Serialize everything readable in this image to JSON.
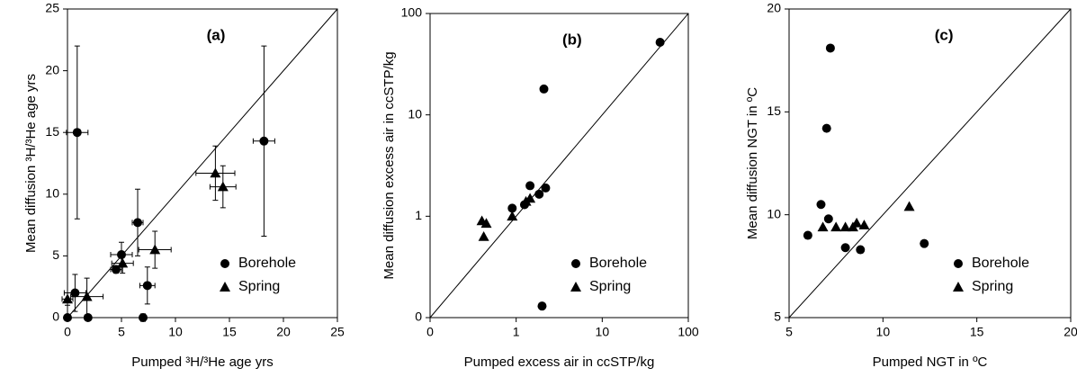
{
  "chart_data": [
    {
      "type": "scatter",
      "annotation": "(a)",
      "xlabel": "Pumped ³H/³He age yrs",
      "ylabel": "Mean diffusion ³H/³He age yrs",
      "xlim": [
        0,
        25
      ],
      "ylim": [
        0,
        25
      ],
      "xticks": [
        0,
        5,
        10,
        15,
        20,
        25
      ],
      "yticks": [
        0,
        5,
        10,
        15,
        20,
        25
      ],
      "legend": "lower right",
      "series": [
        {
          "name": "Borehole",
          "color": "#000000",
          "marker": "circle",
          "x": [
            0,
            0.9,
            0.7,
            1.9,
            4.5,
            5.0,
            6.5,
            7.4,
            7.0,
            18.2
          ],
          "values": [
            0,
            15,
            2.0,
            0,
            3.9,
            5.1,
            7.7,
            2.6,
            0,
            14.3
          ],
          "xerr": [
            0,
            1,
            1,
            0,
            0.5,
            1,
            0.5,
            0.7,
            0.3,
            1
          ],
          "yerr": [
            0,
            7,
            1.5,
            0,
            0.3,
            1,
            2.7,
            1.5,
            0.3,
            7.7
          ]
        },
        {
          "name": "Spring",
          "color": "#000000",
          "marker": "triangle",
          "x": [
            0,
            1.8,
            5.1,
            8.1,
            13.7,
            14.4
          ],
          "values": [
            1.5,
            1.7,
            4.4,
            5.5,
            11.7,
            10.6
          ],
          "xerr": [
            0.5,
            1.5,
            1,
            1.5,
            1.8,
            1.2
          ],
          "yerr": [
            0.5,
            1.5,
            0.8,
            1.5,
            2.2,
            1.7
          ]
        }
      ]
    },
    {
      "type": "scatter",
      "annotation": "(b)",
      "xlabel": "Pumped excess air in ccSTP/kg",
      "ylabel": "Mean diffusion excess air in ccSTP/kg",
      "log_x": true,
      "log_y": true,
      "xlim": [
        0.1,
        100
      ],
      "ylim": [
        0.1,
        100
      ],
      "xticks": [
        {
          "value": 0.1,
          "label": "0"
        },
        1,
        10,
        100
      ],
      "yticks": [
        {
          "value": 0.1,
          "label": "0"
        },
        1,
        10,
        100
      ],
      "legend": "lower right",
      "series": [
        {
          "name": "Borehole",
          "color": "#000000",
          "marker": "circle",
          "x": [
            0.9,
            1.25,
            1.45,
            1.85,
            2.2,
            2.1,
            2.0,
            47
          ],
          "values": [
            1.2,
            1.3,
            2.0,
            1.65,
            1.9,
            18,
            0.13,
            52
          ]
        },
        {
          "name": "Spring",
          "color": "#000000",
          "marker": "triangle",
          "x": [
            0.4,
            0.45,
            0.42,
            0.9,
            1.3,
            1.45
          ],
          "values": [
            0.9,
            0.85,
            0.63,
            1.0,
            1.4,
            1.5
          ]
        }
      ]
    },
    {
      "type": "scatter",
      "annotation": "(c)",
      "xlabel": "Pumped NGT in ºC",
      "ylabel": "Mean diffusion NGT in ºC",
      "xlim": [
        5,
        20
      ],
      "ylim": [
        5,
        20
      ],
      "xticks": [
        5,
        10,
        15,
        20
      ],
      "yticks": [
        5,
        10,
        15,
        20
      ],
      "legend": "lower right",
      "series": [
        {
          "name": "Borehole",
          "color": "#000000",
          "marker": "circle",
          "x": [
            6.0,
            6.7,
            7.1,
            7.0,
            7.2,
            8.0,
            8.8,
            12.2
          ],
          "values": [
            9.0,
            10.5,
            9.8,
            14.2,
            18.1,
            8.4,
            8.3,
            8.6
          ]
        },
        {
          "name": "Spring",
          "color": "#000000",
          "marker": "triangle",
          "x": [
            6.8,
            7.5,
            8.0,
            8.4,
            8.6,
            9.0,
            11.4
          ],
          "values": [
            9.4,
            9.4,
            9.4,
            9.4,
            9.6,
            9.5,
            10.4
          ]
        }
      ]
    }
  ]
}
